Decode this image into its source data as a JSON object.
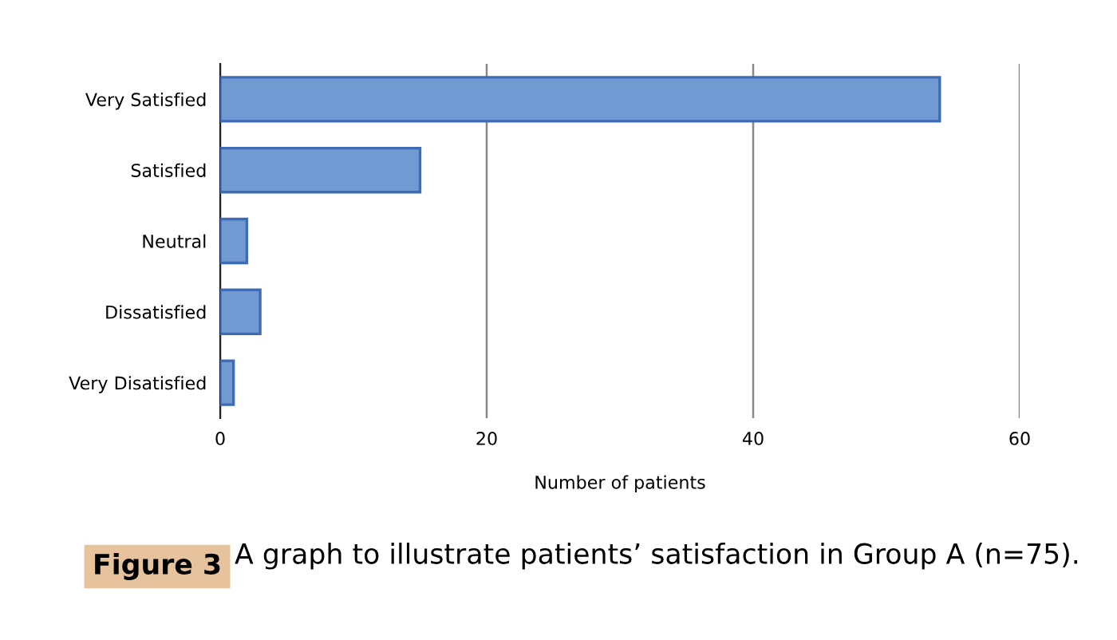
{
  "chart_data": {
    "type": "bar",
    "orientation": "horizontal",
    "categories": [
      "Very Satisfied",
      "Satisfied",
      "Neutral",
      "Dissatisfied",
      "Very Disatisfied"
    ],
    "values": [
      54,
      15,
      2,
      3,
      1
    ],
    "color": "#7199d2",
    "xlabel": "Number of patients",
    "xlim": [
      0,
      60
    ],
    "xticks": [
      0,
      20,
      40,
      60
    ],
    "grid": "x",
    "annotations": [
      "Figure 3",
      "A graph to illustrate patients’ satisfaction in Group A (n=75)."
    ]
  }
}
